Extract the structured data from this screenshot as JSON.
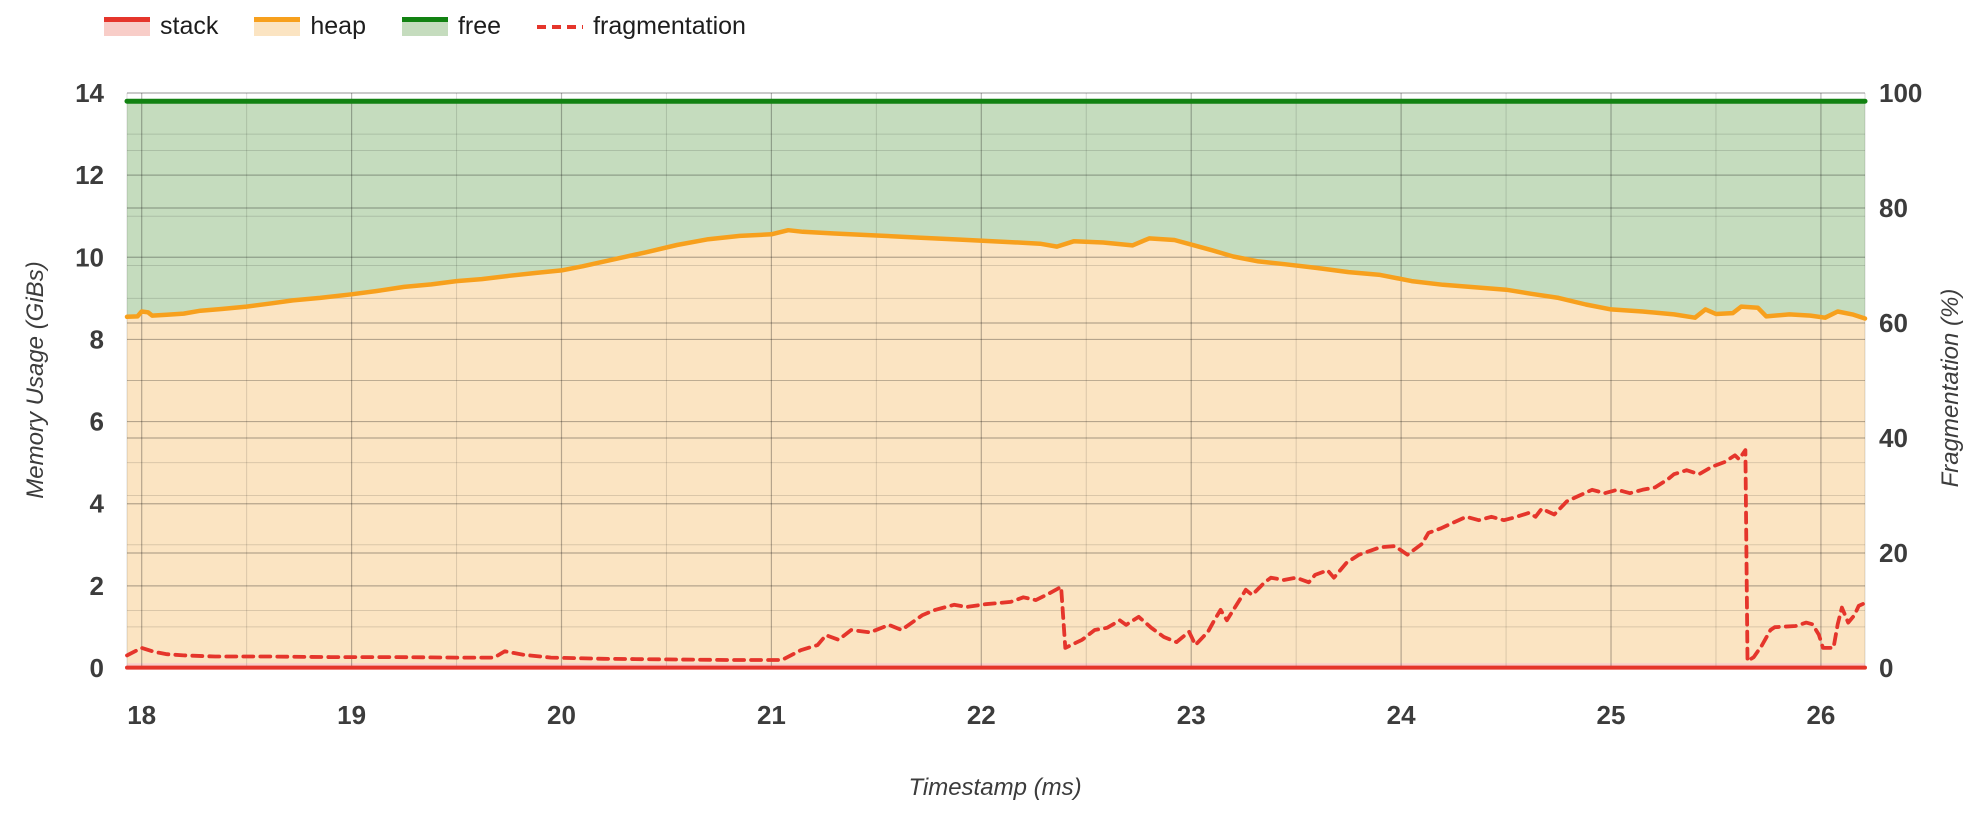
{
  "chart_data": {
    "type": "area",
    "description": "Stacked memory usage areas (left axis, GiBs) with dashed fragmentation line (right axis, %)",
    "x_axis": {
      "title": "Timestamp (ms)",
      "min": 17.93,
      "max": 26.21,
      "ticks": [
        18,
        19,
        20,
        21,
        22,
        23,
        24,
        25,
        26
      ],
      "minor_step": 0.5
    },
    "y_left": {
      "title": "Memory Usage (GiBs)",
      "min": 0,
      "max": 14,
      "ticks": [
        0,
        2,
        4,
        6,
        8,
        10,
        12,
        14
      ],
      "minor_step": 1
    },
    "y_right": {
      "title": "Fragmentation (%)",
      "min": 0,
      "max": 100,
      "ticks": [
        0,
        20,
        40,
        60,
        80,
        100
      ],
      "minor_step": 10
    },
    "grid": {
      "minor_color": "rgba(0,0,0,0.13)",
      "major_color": "rgba(0,0,0,0.28)"
    },
    "series": [
      {
        "name": "stack",
        "axis": "left",
        "kind": "area",
        "line_color": "#e5352b",
        "fill_color": "#f8cdc8",
        "value": 0.12,
        "line_y_value": 0.01
      },
      {
        "name": "heap",
        "axis": "left",
        "kind": "area",
        "line_color": "#f7a01d",
        "fill_color": "#fbe4c2",
        "points": [
          [
            17.93,
            8.55
          ],
          [
            17.98,
            8.56
          ],
          [
            18.0,
            8.68
          ],
          [
            18.03,
            8.66
          ],
          [
            18.05,
            8.58
          ],
          [
            18.12,
            8.6
          ],
          [
            18.2,
            8.63
          ],
          [
            18.28,
            8.7
          ],
          [
            18.38,
            8.74
          ],
          [
            18.5,
            8.8
          ],
          [
            18.62,
            8.88
          ],
          [
            18.72,
            8.95
          ],
          [
            18.85,
            9.01
          ],
          [
            19.0,
            9.1
          ],
          [
            19.12,
            9.18
          ],
          [
            19.25,
            9.28
          ],
          [
            19.38,
            9.34
          ],
          [
            19.5,
            9.42
          ],
          [
            19.62,
            9.47
          ],
          [
            19.75,
            9.55
          ],
          [
            19.88,
            9.62
          ],
          [
            20.0,
            9.68
          ],
          [
            20.1,
            9.78
          ],
          [
            20.25,
            9.95
          ],
          [
            20.4,
            10.12
          ],
          [
            20.55,
            10.3
          ],
          [
            20.7,
            10.44
          ],
          [
            20.85,
            10.52
          ],
          [
            21.0,
            10.56
          ],
          [
            21.08,
            10.66
          ],
          [
            21.15,
            10.62
          ],
          [
            21.3,
            10.58
          ],
          [
            21.5,
            10.53
          ],
          [
            21.7,
            10.48
          ],
          [
            21.9,
            10.43
          ],
          [
            22.1,
            10.38
          ],
          [
            22.28,
            10.33
          ],
          [
            22.36,
            10.26
          ],
          [
            22.44,
            10.39
          ],
          [
            22.58,
            10.36
          ],
          [
            22.72,
            10.29
          ],
          [
            22.8,
            10.46
          ],
          [
            22.92,
            10.42
          ],
          [
            23.0,
            10.31
          ],
          [
            23.1,
            10.17
          ],
          [
            23.2,
            10.02
          ],
          [
            23.32,
            9.9
          ],
          [
            23.45,
            9.83
          ],
          [
            23.6,
            9.74
          ],
          [
            23.75,
            9.64
          ],
          [
            23.9,
            9.57
          ],
          [
            24.05,
            9.42
          ],
          [
            24.2,
            9.33
          ],
          [
            24.35,
            9.27
          ],
          [
            24.5,
            9.21
          ],
          [
            24.62,
            9.11
          ],
          [
            24.75,
            9.01
          ],
          [
            24.88,
            8.85
          ],
          [
            25.0,
            8.73
          ],
          [
            25.15,
            8.68
          ],
          [
            25.3,
            8.61
          ],
          [
            25.4,
            8.53
          ],
          [
            25.45,
            8.73
          ],
          [
            25.5,
            8.62
          ],
          [
            25.58,
            8.64
          ],
          [
            25.62,
            8.8
          ],
          [
            25.7,
            8.77
          ],
          [
            25.74,
            8.56
          ],
          [
            25.85,
            8.61
          ],
          [
            25.95,
            8.58
          ],
          [
            26.02,
            8.53
          ],
          [
            26.08,
            8.68
          ],
          [
            26.15,
            8.61
          ],
          [
            26.21,
            8.51
          ]
        ]
      },
      {
        "name": "free",
        "axis": "left",
        "kind": "area",
        "line_color": "#128212",
        "fill_color": "#c5dcbe",
        "value": 13.8
      },
      {
        "name": "fragmentation",
        "axis": "right",
        "kind": "dashed-line",
        "line_color": "#e5352b",
        "points": [
          [
            17.93,
            2.2
          ],
          [
            18.0,
            3.5
          ],
          [
            18.06,
            2.8
          ],
          [
            18.12,
            2.4
          ],
          [
            18.2,
            2.2
          ],
          [
            18.35,
            2.0
          ],
          [
            18.6,
            2.0
          ],
          [
            18.9,
            1.9
          ],
          [
            19.2,
            1.9
          ],
          [
            19.5,
            1.8
          ],
          [
            19.68,
            1.8
          ],
          [
            19.73,
            2.9
          ],
          [
            19.82,
            2.3
          ],
          [
            19.95,
            1.8
          ],
          [
            20.2,
            1.6
          ],
          [
            20.5,
            1.5
          ],
          [
            20.8,
            1.4
          ],
          [
            21.05,
            1.4
          ],
          [
            21.14,
            3.1
          ],
          [
            21.22,
            4.0
          ],
          [
            21.26,
            5.7
          ],
          [
            21.32,
            4.9
          ],
          [
            21.38,
            6.6
          ],
          [
            21.47,
            6.2
          ],
          [
            21.56,
            7.5
          ],
          [
            21.62,
            6.6
          ],
          [
            21.72,
            9.2
          ],
          [
            21.78,
            10.1
          ],
          [
            21.87,
            11.0
          ],
          [
            21.93,
            10.6
          ],
          [
            22.02,
            11.1
          ],
          [
            22.14,
            11.5
          ],
          [
            22.2,
            12.3
          ],
          [
            22.26,
            11.8
          ],
          [
            22.32,
            12.9
          ],
          [
            22.38,
            14.1
          ],
          [
            22.4,
            3.5
          ],
          [
            22.48,
            4.9
          ],
          [
            22.54,
            6.6
          ],
          [
            22.6,
            7.0
          ],
          [
            22.66,
            8.3
          ],
          [
            22.69,
            7.5
          ],
          [
            22.75,
            8.9
          ],
          [
            22.81,
            7.0
          ],
          [
            22.87,
            5.4
          ],
          [
            22.93,
            4.5
          ],
          [
            22.99,
            6.3
          ],
          [
            23.02,
            4.0
          ],
          [
            23.08,
            6.3
          ],
          [
            23.11,
            8.3
          ],
          [
            23.14,
            10.1
          ],
          [
            23.17,
            8.3
          ],
          [
            23.23,
            11.8
          ],
          [
            23.26,
            13.6
          ],
          [
            23.29,
            12.7
          ],
          [
            23.35,
            14.9
          ],
          [
            23.38,
            15.7
          ],
          [
            23.44,
            15.3
          ],
          [
            23.5,
            15.7
          ],
          [
            23.56,
            14.9
          ],
          [
            23.59,
            16.2
          ],
          [
            23.65,
            17.0
          ],
          [
            23.68,
            15.7
          ],
          [
            23.74,
            18.3
          ],
          [
            23.8,
            19.7
          ],
          [
            23.9,
            21.0
          ],
          [
            23.97,
            21.2
          ],
          [
            24.03,
            19.7
          ],
          [
            24.1,
            21.6
          ],
          [
            24.13,
            23.5
          ],
          [
            24.19,
            24.3
          ],
          [
            24.25,
            25.3
          ],
          [
            24.31,
            26.3
          ],
          [
            24.37,
            25.7
          ],
          [
            24.43,
            26.3
          ],
          [
            24.49,
            25.7
          ],
          [
            24.55,
            26.3
          ],
          [
            24.61,
            27.0
          ],
          [
            24.64,
            26.3
          ],
          [
            24.67,
            27.7
          ],
          [
            24.73,
            26.7
          ],
          [
            24.79,
            29.0
          ],
          [
            24.85,
            30.0
          ],
          [
            24.91,
            31.0
          ],
          [
            24.97,
            30.4
          ],
          [
            25.03,
            31.0
          ],
          [
            25.09,
            30.4
          ],
          [
            25.15,
            31.0
          ],
          [
            25.21,
            31.4
          ],
          [
            25.27,
            32.8
          ],
          [
            25.3,
            33.7
          ],
          [
            25.36,
            34.4
          ],
          [
            25.42,
            33.7
          ],
          [
            25.48,
            35.0
          ],
          [
            25.54,
            35.8
          ],
          [
            25.59,
            37.0
          ],
          [
            25.61,
            36.3
          ],
          [
            25.64,
            37.9
          ],
          [
            25.65,
            1.2
          ],
          [
            25.68,
            1.9
          ],
          [
            25.72,
            4.0
          ],
          [
            25.76,
            6.6
          ],
          [
            25.78,
            7.1
          ],
          [
            25.88,
            7.3
          ],
          [
            25.93,
            7.9
          ],
          [
            25.96,
            7.6
          ],
          [
            25.99,
            5.8
          ],
          [
            26.01,
            3.5
          ],
          [
            26.06,
            3.5
          ],
          [
            26.08,
            7.6
          ],
          [
            26.1,
            10.5
          ],
          [
            26.13,
            7.9
          ],
          [
            26.16,
            9.2
          ],
          [
            26.18,
            10.8
          ],
          [
            26.21,
            11.3
          ]
        ]
      }
    ],
    "legend_position": "top-left"
  }
}
